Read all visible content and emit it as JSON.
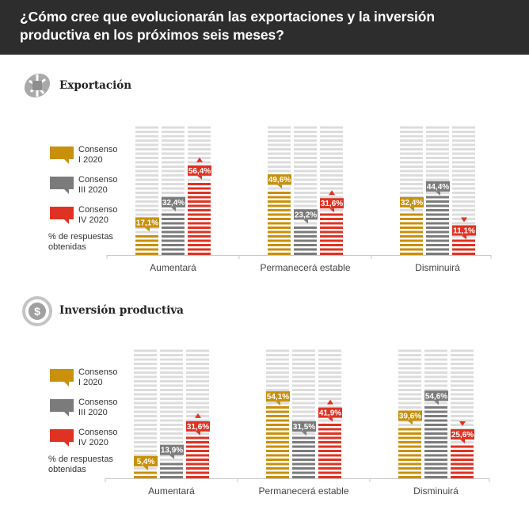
{
  "header": {
    "title": "¿Cómo cree que evolucionarán las exportaciones y la inversión productiva en los próximos seis meses?"
  },
  "colors": {
    "consenso_i": "#c8900b",
    "consenso_iii": "#7b7b7b",
    "consenso_iv": "#df3222",
    "empty_stripe": "#dcdcdc",
    "axis": "#c8c8c8",
    "header_bg": "#2d2d2d"
  },
  "legend": {
    "items": [
      {
        "label_line1": "Consenso",
        "label_line2": "I 2020",
        "color_key": "consenso_i"
      },
      {
        "label_line1": "Consenso",
        "label_line2": "III 2020",
        "color_key": "consenso_iii"
      },
      {
        "label_line1": "Consenso",
        "label_line2": "IV 2020",
        "color_key": "consenso_iv"
      }
    ],
    "note_line1": "% de respuestas",
    "note_line2": "obtenidas"
  },
  "sections": [
    {
      "title": "Exportación",
      "icon": "globe-icon"
    },
    {
      "title": "Inversión productiva",
      "icon": "dollar-cycle-icon"
    }
  ],
  "chart_data": [
    {
      "type": "bar",
      "title": "Exportación",
      "categories": [
        "Aumentará",
        "Permanecerá estable",
        "Disminuirá"
      ],
      "series": [
        {
          "name": "Consenso I 2020",
          "values": [
            17.1,
            49.6,
            32.4
          ],
          "labels": [
            "17,1%",
            "49,6%",
            "32,4%"
          ]
        },
        {
          "name": "Consenso III 2020",
          "values": [
            32.4,
            23.2,
            44.4
          ],
          "labels": [
            "32,4%",
            "23,2%",
            "44,4%"
          ]
        },
        {
          "name": "Consenso IV 2020",
          "values": [
            56.4,
            31.6,
            11.1
          ],
          "labels": [
            "56,4%",
            "31,6%",
            "11,1%"
          ],
          "trend": [
            "up",
            "up",
            "down"
          ]
        }
      ],
      "ylim": [
        0,
        100
      ],
      "ylabel": "% de respuestas obtenidas",
      "legend": "left",
      "grid": false
    },
    {
      "type": "bar",
      "title": "Inversión productiva",
      "categories": [
        "Aumentará",
        "Permanecerá estable",
        "Disminuirá"
      ],
      "series": [
        {
          "name": "Consenso I 2020",
          "values": [
            5.4,
            54.1,
            39.6
          ],
          "labels": [
            "5,4%",
            "54,1%",
            "39,6%"
          ]
        },
        {
          "name": "Consenso III 2020",
          "values": [
            13.9,
            31.5,
            54.6
          ],
          "labels": [
            "13,9%",
            "31,5%",
            "54,6%"
          ]
        },
        {
          "name": "Consenso IV 2020",
          "values": [
            31.6,
            41.9,
            25.6
          ],
          "labels": [
            "31,6%",
            "41,9%",
            "25,6%"
          ],
          "trend": [
            "up",
            "up",
            "down"
          ]
        }
      ],
      "ylim": [
        0,
        100
      ],
      "ylabel": "% de respuestas obtenidas",
      "legend": "left",
      "grid": false
    }
  ]
}
